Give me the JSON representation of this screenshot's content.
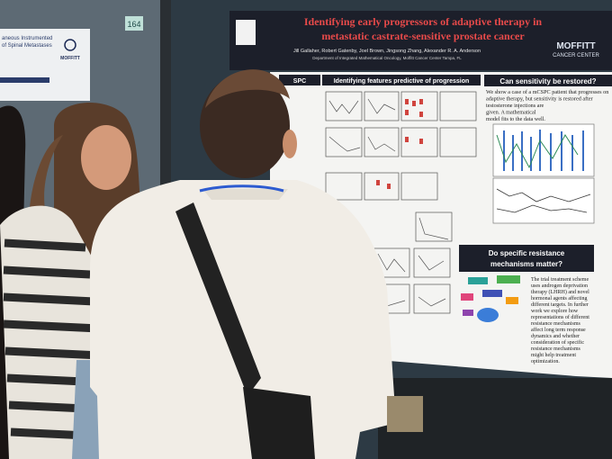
{
  "board_number": "164",
  "left_poster": {
    "title_lines": [
      "aneous Instrumented",
      "of Spinal Metastases"
    ],
    "logo": "MOFFITT"
  },
  "poster": {
    "title_lines": [
      "Identifying early progressors of adaptive therapy in",
      "metastatic castrate-sensitive prostate cancer"
    ],
    "authors": "Jill Gallaher, Robert Gatenby, Joel Brown, Jingsong Zhang, Alexander R. A. Anderson",
    "affiliation": "Department of Integrated Mathematical Oncology, Moffitt Cancer Center Tampa, FL",
    "logo_lines": [
      "MOFFITT",
      "CANCER CENTER"
    ],
    "side_heading": "SPC",
    "features_heading": "Identifying features predictive of progression",
    "restore": {
      "heading": "Can sensitivity be restored?",
      "body_lines": [
        "We show a case of a mCSPC patient that progresses on",
        "adaptive therapy, but sensitivity is restored after",
        "testosterone injections are",
        "given. A mathematical",
        "model fits to the data well."
      ]
    },
    "mechanisms": {
      "heading_lines": [
        "Do specific resistance",
        "mechanisms matter?"
      ],
      "body_lines": [
        "The trial treatment scheme",
        "uses androgen deprivation",
        "therapy (LHRH) and novel",
        "hormonal agents affecting",
        "different targets. In further",
        "work we explore how",
        "representations of different",
        "resistance mechanisms",
        "affect long term response",
        "dynamics and whether",
        "consideration of specific",
        "resistance mechanisms",
        "might help treatment",
        "optimization."
      ]
    }
  }
}
